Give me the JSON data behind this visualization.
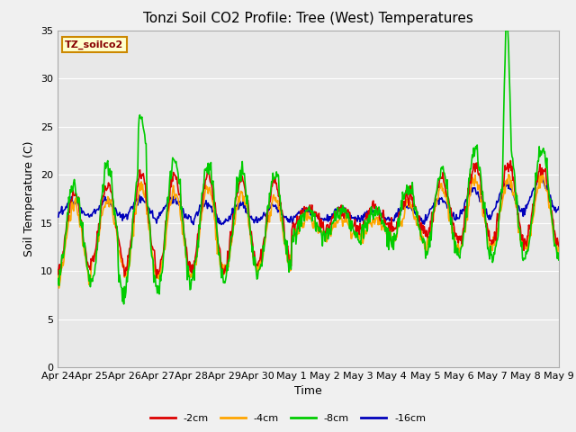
{
  "title": "Tonzi Soil CO2 Profile: Tree (West) Temperatures",
  "xlabel": "Time",
  "ylabel": "Soil Temperature (C)",
  "ylim": [
    0,
    35
  ],
  "yticks": [
    0,
    5,
    10,
    15,
    20,
    25,
    30,
    35
  ],
  "xtick_labels": [
    "Apr 24",
    "Apr 25",
    "Apr 26",
    "Apr 27",
    "Apr 28",
    "Apr 29",
    "Apr 30",
    "May 1",
    "May 2",
    "May 3",
    "May 4",
    "May 5",
    "May 6",
    "May 7",
    "May 8",
    "May 9"
  ],
  "legend_label": "TZ_soilco2",
  "series_labels": [
    "-2cm",
    "-4cm",
    "-8cm",
    "-16cm"
  ],
  "series_colors": [
    "#dd0000",
    "#ffa500",
    "#00cc00",
    "#0000bb"
  ],
  "plot_bg_color": "#e8e8e8",
  "grid_color": "#ffffff",
  "fig_bg_color": "#f0f0f0",
  "title_fontsize": 11,
  "axis_label_fontsize": 9,
  "tick_fontsize": 8
}
